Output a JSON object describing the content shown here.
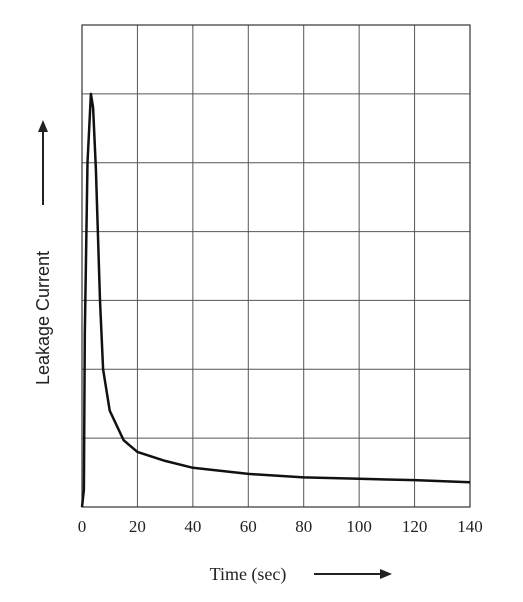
{
  "chart_data": {
    "type": "line",
    "x_label": "Time (sec)",
    "y_label": "Leakage Current",
    "xlim": [
      0,
      140
    ],
    "xticks": [
      0,
      20,
      40,
      60,
      80,
      100,
      120,
      140
    ],
    "ylim": [
      0,
      7
    ],
    "yticks": [
      0,
      1,
      2,
      3,
      4,
      5,
      6,
      7
    ],
    "show_ytick_labels": false,
    "grid": true,
    "series": [
      {
        "color": "#111111",
        "x": [
          0,
          0.7,
          1,
          2,
          3.2,
          4,
          5,
          6.5,
          7.6,
          10,
          15,
          20,
          30,
          40,
          60,
          80,
          100,
          120,
          140
        ],
        "values": [
          0,
          0.25,
          2.5,
          5,
          6.0,
          5.8,
          4.9,
          3.0,
          2.0,
          1.4,
          0.97,
          0.8,
          0.67,
          0.57,
          0.48,
          0.43,
          0.41,
          0.39,
          0.36
        ]
      }
    ]
  }
}
